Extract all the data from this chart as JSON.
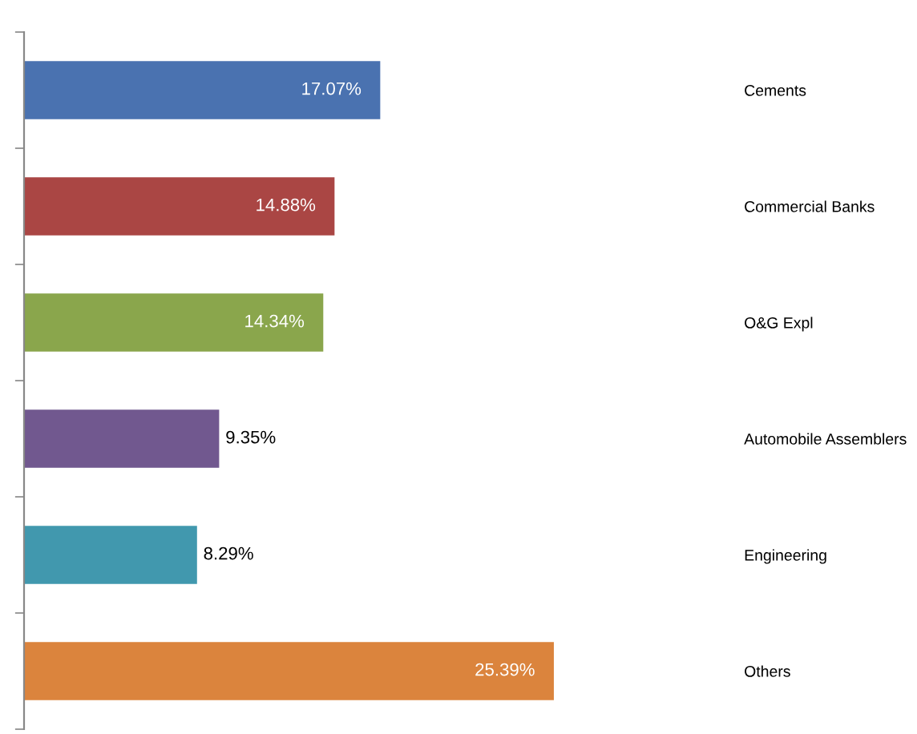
{
  "chart_data": {
    "type": "bar",
    "orientation": "horizontal",
    "categories": [
      "Cements",
      "Commercial Banks",
      "O&G Expl",
      "Automobile Assemblers",
      "Engineering",
      "Others"
    ],
    "values": [
      17.07,
      14.88,
      14.34,
      9.35,
      8.29,
      25.39
    ],
    "value_labels": [
      "17.07%",
      "14.88%",
      "14.34%",
      "9.35%",
      "8.29%",
      "25.39%"
    ],
    "colors": [
      "#4a72b0",
      "#aa4644",
      "#8aa64c",
      "#71588f",
      "#4198ae",
      "#db843d"
    ],
    "grid": false,
    "legend": false
  }
}
